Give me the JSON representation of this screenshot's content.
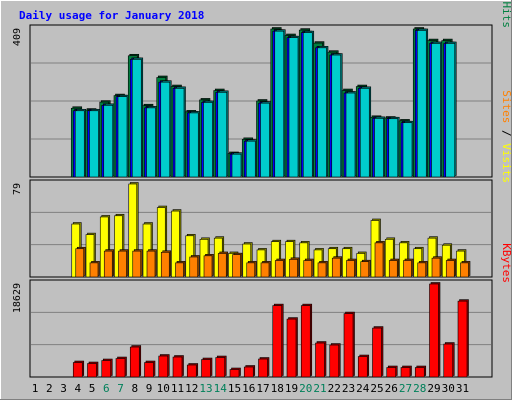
{
  "chart_data": {
    "type": "bar",
    "title": "Daily usage for January 2018",
    "categories": [
      "1",
      "2",
      "3",
      "4",
      "5",
      "6",
      "7",
      "8",
      "9",
      "10",
      "11",
      "12",
      "13",
      "14",
      "15",
      "16",
      "17",
      "18",
      "19",
      "20",
      "21",
      "22",
      "23",
      "24",
      "25",
      "26",
      "27",
      "28",
      "29",
      "30",
      "31"
    ],
    "weekend_days": [
      "6",
      "7",
      "13",
      "14",
      "20",
      "21",
      "27",
      "28"
    ],
    "panels": [
      {
        "id": "pages-files-hits",
        "y_max_label": "409",
        "ylim": [
          0,
          409
        ],
        "axis_label_parts": [
          {
            "text": "Pages",
            "color": "#00cccc"
          },
          {
            "text": " / ",
            "color": "#000000"
          },
          {
            "text": "Files",
            "color": "#0000ff"
          },
          {
            "text": " / ",
            "color": "#000000"
          },
          {
            "text": "Hits",
            "color": "#008040"
          }
        ],
        "series": [
          {
            "name": "Hits",
            "color": "#008040",
            "values": [
              0,
              0,
              0,
              190,
              185,
              207,
              225,
              335,
              197,
              275,
              250,
              180,
              213,
              239,
              65,
              104,
              210,
              409,
              391,
              406,
              370,
              345,
              239,
              250,
              165,
              163,
              155,
              409,
              377,
              377,
              0
            ]
          },
          {
            "name": "Files",
            "color": "#0000ff",
            "values": [
              0,
              0,
              0,
              183,
              183,
              198,
              222,
              325,
              191,
              262,
              245,
              177,
              206,
              234,
              63,
              99,
              204,
              403,
              385,
              399,
              357,
              337,
              232,
              245,
              162,
              161,
              150,
              405,
              369,
              369,
              0
            ]
          },
          {
            "name": "Pages",
            "color": "#00cccc",
            "values": [
              0,
              0,
              0,
              183,
              183,
              198,
              222,
              325,
              191,
              262,
              245,
              177,
              206,
              234,
              63,
              99,
              204,
              403,
              385,
              399,
              357,
              337,
              232,
              245,
              162,
              161,
              150,
              405,
              369,
              369,
              0
            ]
          }
        ]
      },
      {
        "id": "visits-sites",
        "y_max_label": "79",
        "ylim": [
          0,
          79
        ],
        "axis_label_parts": [
          {
            "text": "Sites",
            "color": "#ff8000"
          },
          {
            "text": " / ",
            "color": "#000000"
          },
          {
            "text": "Visits",
            "color": "#ffff00"
          }
        ],
        "series": [
          {
            "name": "Visits",
            "color": "#ffff00",
            "values": [
              0,
              0,
              0,
              45,
              36,
              51,
              52,
              79,
              45,
              59,
              56,
              35,
              32,
              33,
              20,
              28,
              23,
              30,
              30,
              29,
              23,
              24,
              24,
              20,
              48,
              32,
              29,
              24,
              33,
              27,
              22
            ]
          },
          {
            "name": "Sites",
            "color": "#ff8000",
            "values": [
              0,
              0,
              0,
              24,
              12,
              22,
              22,
              22,
              22,
              21,
              12,
              17,
              18,
              20,
              19,
              12,
              12,
              14,
              15,
              14,
              12,
              16,
              14,
              13,
              29,
              14,
              14,
              12,
              16,
              14,
              12
            ]
          }
        ]
      },
      {
        "id": "kbytes",
        "y_max_label": "18629",
        "ylim": [
          0,
          18629
        ],
        "axis_label_parts": [
          {
            "text": "KBytes",
            "color": "#ff0000"
          }
        ],
        "series": [
          {
            "name": "KBytes",
            "color": "#ff0000",
            "values": [
              0,
              0,
              0,
              2900,
              2700,
              3300,
              3700,
              6000,
              2900,
              4200,
              4000,
              2400,
              3500,
              3900,
              1500,
              2000,
              3600,
              14300,
              11600,
              14300,
              6800,
              6400,
              12700,
              4100,
              9800,
              1900,
              1900,
              1900,
              18629,
              6600,
              15200
            ]
          }
        ]
      }
    ]
  }
}
